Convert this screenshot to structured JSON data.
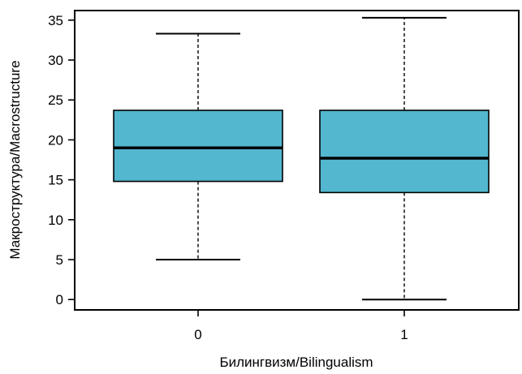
{
  "chart_data": {
    "type": "box",
    "title": "",
    "xlabel": "Билингвизм/Bilingualism",
    "ylabel": "Макроструктура/Macrostructure",
    "ylim": [
      -1.3,
      36.2
    ],
    "yticks": [
      0,
      5,
      10,
      15,
      20,
      25,
      30,
      35
    ],
    "categories": [
      "0",
      "1"
    ],
    "boxes": [
      {
        "category": "0",
        "whisker_low": 5,
        "q1": 14.8,
        "median": 19,
        "q3": 23.7,
        "whisker_high": 33.3
      },
      {
        "category": "1",
        "whisker_low": 0,
        "q1": 13.4,
        "median": 17.7,
        "q3": 23.7,
        "whisker_high": 35.3
      }
    ],
    "box_color": "#52B7CF",
    "grid": false
  }
}
